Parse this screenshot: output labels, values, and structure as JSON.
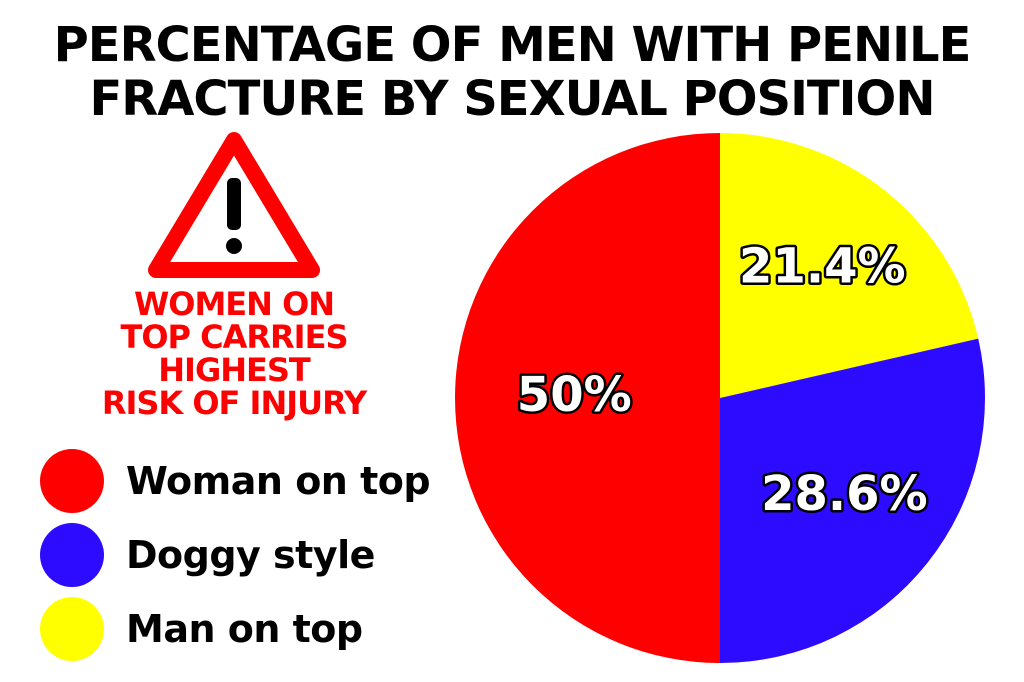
{
  "title_lines": [
    "PERCENTAGE OF MEN WITH PENILE",
    "FRACTURE BY SEXUAL POSITION"
  ],
  "warning": {
    "icon": "warning-triangle-icon",
    "lines": [
      "WOMEN ON",
      "TOP CARRIES",
      "HIGHEST",
      "RISK OF INJURY"
    ]
  },
  "colors": {
    "red": "#ff0000",
    "blue": "#2d0bff",
    "yellow": "#ffff00"
  },
  "chart_data": {
    "type": "pie",
    "title": "PERCENTAGE OF MEN WITH PENILE FRACTURE BY SEXUAL POSITION",
    "slices": [
      {
        "label": "Woman on top",
        "value": 50,
        "display": "50%",
        "color": "#ff0000"
      },
      {
        "label": "Doggy style",
        "value": 28.6,
        "display": "28.6%",
        "color": "#2d0bff"
      },
      {
        "label": "Man on top",
        "value": 21.4,
        "display": "21.4%",
        "color": "#ffff00"
      }
    ],
    "legend_position": "left"
  }
}
